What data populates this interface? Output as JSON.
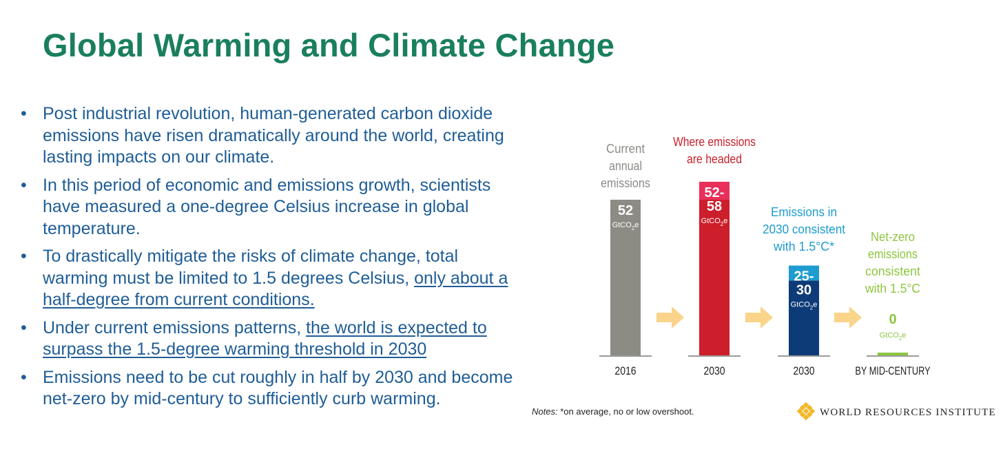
{
  "slide": {
    "title": "Global Warming and Climate Change",
    "bullets": [
      {
        "parts": [
          {
            "text": "Post industrial revolution, human-generated carbon dioxide emissions have risen dramatically around the world, creating lasting impacts on our climate.",
            "link": false
          }
        ]
      },
      {
        "parts": [
          {
            "text": "In this period of economic and emissions growth, scientists have measured a one-degree Celsius increase in global temperature.",
            "link": false
          }
        ]
      },
      {
        "parts": [
          {
            "text": "To drastically mitigate the risks of climate change, total warming must be limited to 1.5 degrees Celsius, ",
            "link": false
          },
          {
            "text": "only about a half-degree from current conditions.",
            "link": true
          }
        ]
      },
      {
        "parts": [
          {
            "text": "Under current emissions patterns, ",
            "link": false
          },
          {
            "text": "the world is expected to surpass the 1.5-degree warming threshold in 2030",
            "link": true
          }
        ]
      },
      {
        "parts": [
          {
            "text": "Emissions need to be cut roughly in half by 2030 and become net-zero by mid-century to sufficiently curb warming.",
            "link": false
          }
        ]
      }
    ]
  },
  "chart_data": {
    "type": "bar",
    "title": "",
    "unit_main": "GtCO",
    "unit_sub": "2",
    "unit_tail": "e",
    "ylim": [
      0,
      60
    ],
    "categories": [
      "2016",
      "2030",
      "2030",
      "BY MID-CENTURY"
    ],
    "bars": [
      {
        "category": "2016",
        "heading": [
          "Current",
          "annual",
          "emissions"
        ],
        "heading_color": "#8a8a86",
        "value": 52,
        "low": 52,
        "label": [
          "52"
        ],
        "color": "#8c8c84",
        "top_color": "#8c8c84",
        "text_color": "#ffffff"
      },
      {
        "category": "2030",
        "heading": [
          "Where emissions",
          "are headed"
        ],
        "heading_color": "#c8222c",
        "value": 58,
        "low": 52,
        "label": [
          "52-",
          "58"
        ],
        "color": "#cc1f2b",
        "top_color": "#e8305a",
        "text_color": "#ffffff"
      },
      {
        "category": "2030",
        "heading": [
          "Emissions in",
          "2030 consistent",
          "with 1.5°C*"
        ],
        "heading_color": "#1e9ccf",
        "value": 30,
        "low": 25,
        "label": [
          "25-",
          "30"
        ],
        "color": "#0d3b78",
        "top_color": "#1e9ccf",
        "text_color": "#ffffff"
      },
      {
        "category": "BY MID-CENTURY",
        "heading": [
          "Net-zero",
          "emissions",
          "consistent",
          "with 1.5°C"
        ],
        "heading_color": "#8dc63f",
        "value": 0,
        "low": 0,
        "label": [
          "0"
        ],
        "color": "#8dc63f",
        "top_color": "#8dc63f",
        "text_color": "#8dc63f"
      }
    ],
    "arrow_color": "#f9d48a",
    "note_prefix": "Notes:",
    "note_text": " *on average, no or low overshoot.",
    "source": "WORLD RESOURCES INSTITUTE",
    "source_logo_color": "#f2b627"
  }
}
